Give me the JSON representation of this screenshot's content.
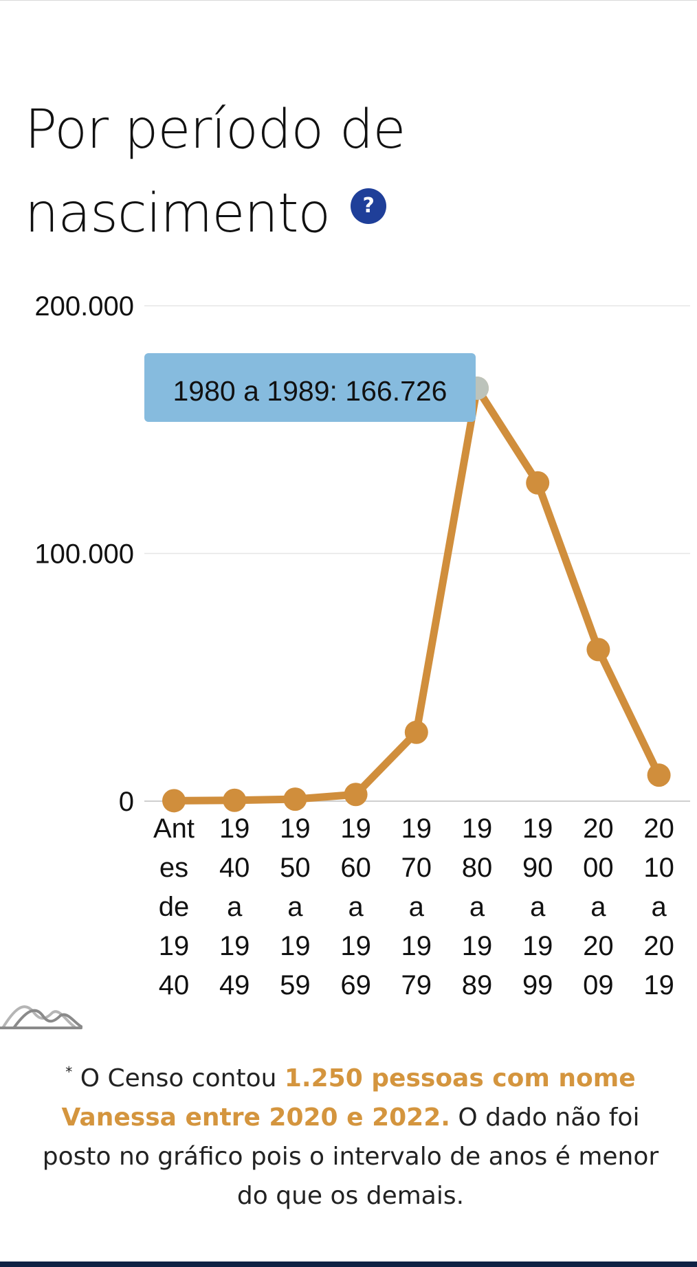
{
  "header": {
    "title": "Por período de nascimento",
    "help_glyph": "?",
    "help_icon": "question-circle-icon"
  },
  "colors": {
    "line": "#d08e3c",
    "tooltip_bg": "#86bbde",
    "help_bg": "#1f3f99",
    "highlight_text": "#d4953e",
    "grid": "#e6e6e6"
  },
  "chart_data": {
    "type": "line",
    "title": "Por período de nascimento",
    "xlabel": "",
    "ylabel": "",
    "ylim": [
      0,
      200000
    ],
    "y_ticks": [
      0,
      100000,
      200000
    ],
    "y_tick_labels": [
      "0",
      "100.000",
      "200.000"
    ],
    "grid": true,
    "categories": [
      "Antes de 1940",
      "1940 a 1949",
      "1950 a 1959",
      "1960 a 1969",
      "1970 a 1979",
      "1980 a 1989",
      "1990 a 1999",
      "2000 a 2009",
      "2010 a 2019"
    ],
    "category_lines": [
      [
        "Ant",
        "es",
        "de",
        "19",
        "40"
      ],
      [
        "19",
        "40",
        "a",
        "19",
        "49"
      ],
      [
        "19",
        "50",
        "a",
        "19",
        "59"
      ],
      [
        "19",
        "60",
        "a",
        "19",
        "69"
      ],
      [
        "19",
        "70",
        "a",
        "19",
        "79"
      ],
      [
        "19",
        "80",
        "a",
        "19",
        "89"
      ],
      [
        "19",
        "90",
        "a",
        "19",
        "99"
      ],
      [
        "20",
        "00",
        "a",
        "20",
        "09"
      ],
      [
        "20",
        "10",
        "a",
        "20",
        "19"
      ]
    ],
    "series": [
      {
        "values": [
          180,
          350,
          800,
          2700,
          27800,
          166726,
          128500,
          61200,
          10500
        ]
      }
    ],
    "tooltip": {
      "category_index": 5,
      "text": "1980 a 1989: 166.726"
    },
    "toolbar_icon": "area-chart-icon"
  },
  "note": {
    "asterisk": "*",
    "pre": " O Censo contou ",
    "highlight": "1.250 pessoas com nome Vanessa entre 2020 e 2022.",
    "post": " O dado não foi posto no gráfico pois o intervalo de anos é menor do que os demais."
  }
}
